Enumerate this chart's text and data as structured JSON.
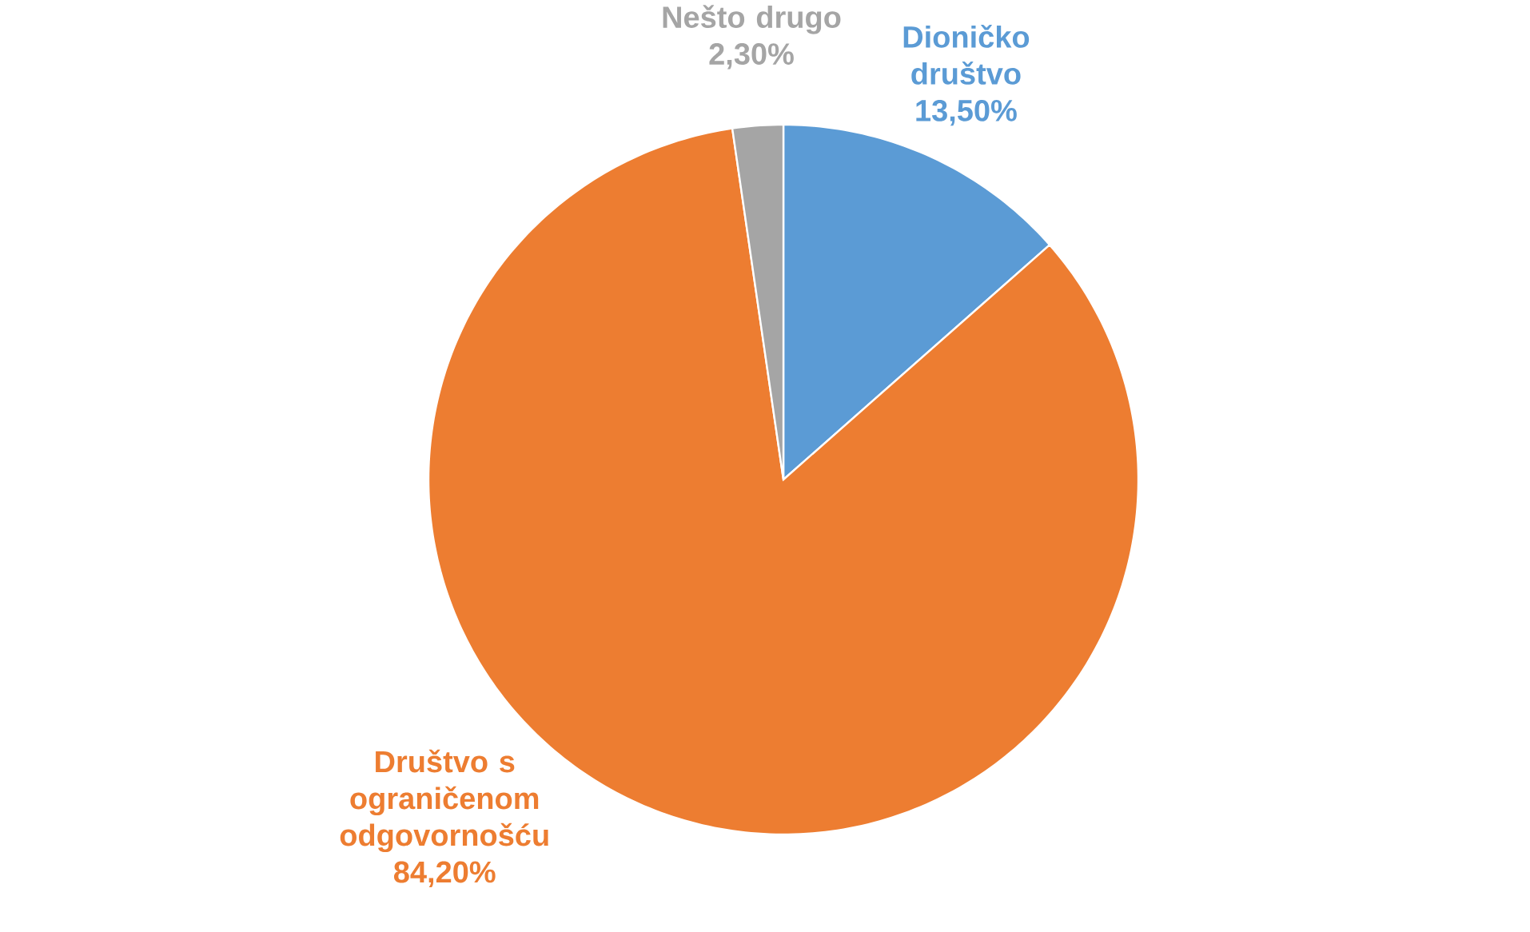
{
  "chart_data": {
    "type": "pie",
    "categories": [
      "Dioničko društvo",
      "Društvo s ograničenom odgovornošću",
      "Nešto drugo"
    ],
    "values": [
      13.5,
      84.2,
      2.3
    ],
    "colors": [
      "#5b9bd5",
      "#ed7d31",
      "#a5a5a5"
    ],
    "value_labels": [
      "13,50%",
      "84,20%",
      "2,30%"
    ]
  }
}
